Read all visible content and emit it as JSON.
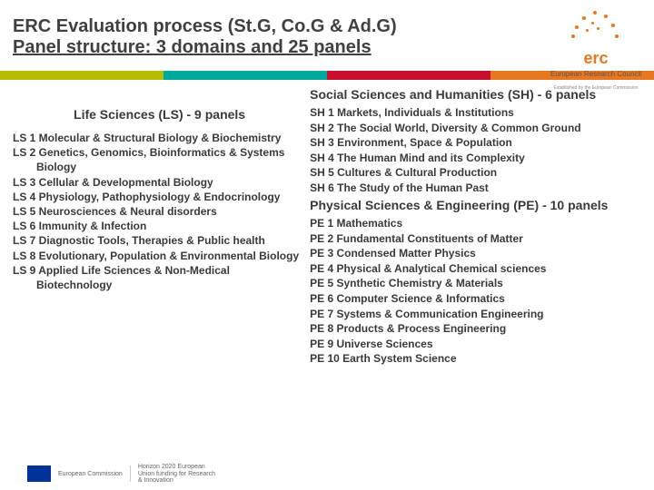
{
  "header": {
    "line1": "ERC Evaluation process (St.G, Co.G & Ad.G)",
    "line2": "Panel structure: 3 domains and 25 panels"
  },
  "logo": {
    "abbrev": "erc",
    "name": "European Research Council",
    "tagline": "Established by the European Commission"
  },
  "stripe_colors": [
    "#b6bd00",
    "#00a99d",
    "#c8102e",
    "#e87722"
  ],
  "left": {
    "title": "Life Sciences (LS) - 9 panels",
    "items": [
      "LS 1 Molecular & Structural Biology & Biochemistry",
      "LS 2 Genetics, Genomics, Bioinformatics & Systems Biology",
      "LS 3 Cellular & Developmental Biology",
      "LS 4 Physiology, Pathophysiology & Endocrinology",
      "LS 5 Neurosciences & Neural disorders",
      "LS 6 Immunity & Infection",
      "LS 7 Diagnostic Tools, Therapies & Public health",
      "LS 8 Evolutionary, Population & Environmental Biology",
      "LS 9 Applied Life Sciences & Non-Medical Biotechnology"
    ]
  },
  "right_sh": {
    "title": "Social Sciences and Humanities (SH) - 6 panels",
    "items": [
      "SH 1 Markets, Individuals & Institutions",
      "SH 2 The Social World, Diversity & Common Ground",
      "SH 3 Environment, Space & Population",
      "SH 4 The Human Mind and its Complexity",
      "SH 5 Cultures & Cultural Production",
      "SH 6 The Study of the Human Past"
    ]
  },
  "right_pe": {
    "title": "Physical Sciences & Engineering (PE) - 10 panels",
    "items": [
      "PE 1 Mathematics",
      "PE 2 Fundamental Constituents of Matter",
      "PE 3 Condensed Matter Physics",
      "PE 4 Physical & Analytical Chemical sciences",
      "PE 5 Synthetic Chemistry & Materials",
      "PE 6 Computer Science & Informatics",
      "PE 7 Systems & Communication Engineering",
      "PE 8 Products & Process Engineering",
      "PE 9 Universe Sciences",
      "PE 10 Earth System Science"
    ]
  },
  "footer": {
    "org": "European Commission",
    "prog": "Horizon 2020 European Union funding for Research & Innovation"
  }
}
